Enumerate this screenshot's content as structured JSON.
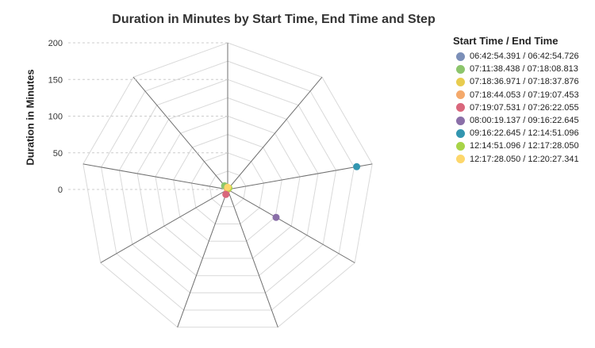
{
  "chart_data": {
    "type": "radar",
    "title": "Duration in Minutes by Start Time, End Time and Step",
    "ylabel": "Duration in Minutes",
    "legend_title": "Start Time / End Time",
    "legend_position": "right",
    "axis_count": 9,
    "ylim": [
      0,
      200
    ],
    "yticks": [
      "0",
      "50",
      "100",
      "150",
      "200"
    ],
    "series": [
      {
        "name": "06:42:54.391 / 06:42:54.726",
        "color": "#7b8fb8",
        "axis": 0,
        "value": 0.0
      },
      {
        "name": "07:11:38.438 / 07:18:08.813",
        "color": "#8cc56c",
        "axis": 8,
        "value": 6.5
      },
      {
        "name": "07:18:36.971 / 07:18:37.876",
        "color": "#e8cc4f",
        "axis": 7,
        "value": 0.0
      },
      {
        "name": "07:18:44.053 / 07:19:07.453",
        "color": "#f4a96b",
        "axis": 6,
        "value": 0.4
      },
      {
        "name": "07:19:07.531 / 07:26:22.055",
        "color": "#d9677c",
        "axis": 5,
        "value": 7.2
      },
      {
        "name": "08:00:19.137 / 09:16:22.645",
        "color": "#8a6fa8",
        "axis": 3,
        "value": 76.1
      },
      {
        "name": "09:16:22.645 / 12:14:51.096",
        "color": "#3396b0",
        "axis": 2,
        "value": 178.5
      },
      {
        "name": "12:14:51.096 / 12:17:28.050",
        "color": "#a8d448",
        "axis": 1,
        "value": 2.6
      },
      {
        "name": "12:17:28.050 / 12:20:27.341",
        "color": "#fdd76b",
        "axis": 0,
        "value": 2.98
      }
    ]
  }
}
